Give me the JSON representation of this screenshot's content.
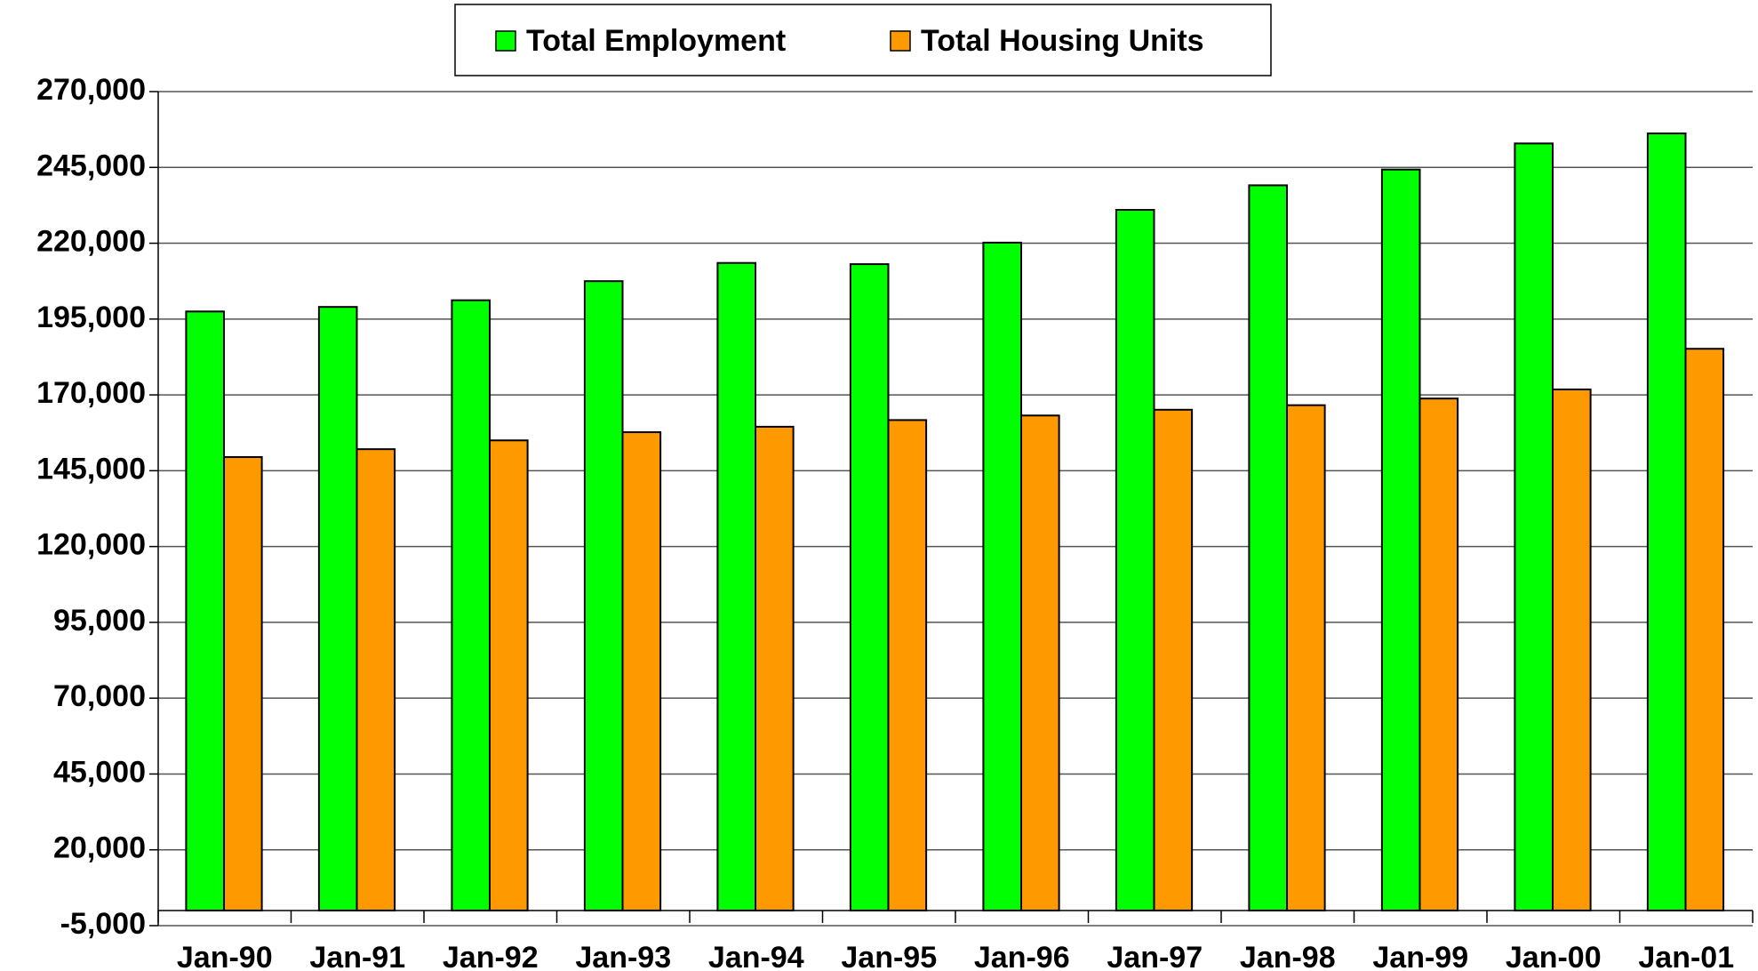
{
  "chart_data": {
    "type": "bar",
    "categories": [
      "Jan-90",
      "Jan-91",
      "Jan-92",
      "Jan-93",
      "Jan-94",
      "Jan-95",
      "Jan-96",
      "Jan-97",
      "Jan-98",
      "Jan-99",
      "Jan-00",
      "Jan-01"
    ],
    "series": [
      {
        "name": "Total Employment",
        "color": "#00ff00",
        "values": [
          197500,
          199000,
          201200,
          207500,
          213500,
          213100,
          220200,
          231000,
          239100,
          244300,
          252900,
          256200
        ]
      },
      {
        "name": "Total Housing Units",
        "color": "#ff9900",
        "values": [
          149500,
          152100,
          155000,
          157700,
          159500,
          161700,
          163200,
          165100,
          166600,
          168800,
          171800,
          185200
        ]
      }
    ],
    "ylim": [
      -5000,
      270000
    ],
    "yticks": [
      {
        "value": -5000,
        "label": "-5,000"
      },
      {
        "value": 20000,
        "label": "20,000"
      },
      {
        "value": 45000,
        "label": "45,000"
      },
      {
        "value": 70000,
        "label": "70,000"
      },
      {
        "value": 95000,
        "label": "95,000"
      },
      {
        "value": 120000,
        "label": "120,000"
      },
      {
        "value": 145000,
        "label": "145,000"
      },
      {
        "value": 170000,
        "label": "170,000"
      },
      {
        "value": 195000,
        "label": "195,000"
      },
      {
        "value": 220000,
        "label": "220,000"
      },
      {
        "value": 245000,
        "label": "245,000"
      },
      {
        "value": 270000,
        "label": "270,000"
      }
    ],
    "grid": true,
    "legend": "top"
  }
}
